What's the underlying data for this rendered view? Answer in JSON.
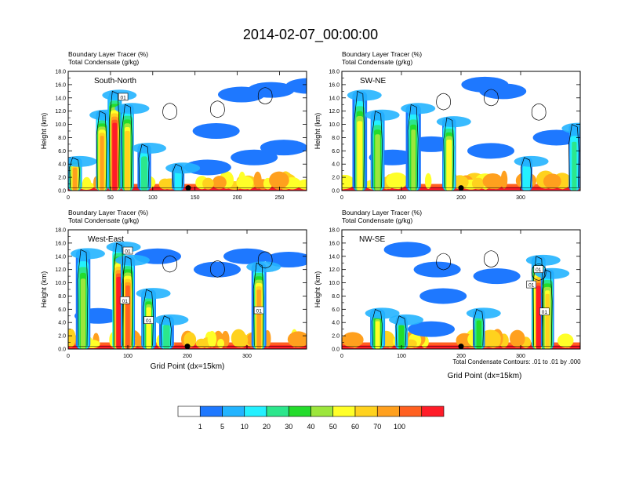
{
  "title": "2014-02-07_00:00:00",
  "colors": {
    "levels": [
      "#ffffff",
      "#1e78ff",
      "#23b4ff",
      "#24f0ff",
      "#2ce68c",
      "#24dc2c",
      "#9ce63c",
      "#ffff28",
      "#ffd21e",
      "#ffa01e",
      "#ff6020",
      "#ff1c28"
    ],
    "contour": "#000000",
    "background": "#ffffff"
  },
  "colorbar": {
    "labels": [
      "1",
      "5",
      "10",
      "20",
      "30",
      "40",
      "50",
      "60",
      "70",
      "100"
    ]
  },
  "footnote": "Total Condensate Contours: .01 to .01 by .000",
  "chart_data": [
    {
      "type": "heatmap",
      "name": "South-North",
      "line1": "Boundary Layer Tracer    (%)",
      "line2": "Total Condensate    (g/kg)",
      "ylabel": "Height (km)",
      "xlabel": "",
      "xlim": [
        0,
        282
      ],
      "ylim": [
        0,
        18
      ],
      "xticks": [
        "0",
        "50",
        "100",
        "150",
        "200",
        "250"
      ],
      "yticks": [
        "0.0",
        "2.0",
        "4.0",
        "6.0",
        "8.0",
        "10.0",
        "12.0",
        "14.0",
        "16.0",
        "18.0"
      ],
      "contour_labels": [
        {
          "text": "01",
          "x": 65,
          "y": 14.1
        }
      ],
      "marker_x": 142,
      "columns": [
        {
          "x": 8,
          "top": 5,
          "peak": 9
        },
        {
          "x": 40,
          "top": 12,
          "peak": 9
        },
        {
          "x": 55,
          "top": 15,
          "peak": 11
        },
        {
          "x": 70,
          "top": 13,
          "peak": 8
        },
        {
          "x": 90,
          "top": 7,
          "peak": 4
        },
        {
          "x": 130,
          "top": 4,
          "peak": 3
        }
      ],
      "patches": [
        {
          "x": 175,
          "y": 9,
          "v": 4
        },
        {
          "x": 165,
          "y": 3.5,
          "v": 4
        },
        {
          "x": 220,
          "y": 5,
          "v": 4
        },
        {
          "x": 255,
          "y": 6.5,
          "v": 5
        },
        {
          "x": 240,
          "y": 15.2,
          "v": 1
        },
        {
          "x": 205,
          "y": 14.5,
          "v": 1
        },
        {
          "x": 285,
          "y": 15.8,
          "v": 1
        }
      ]
    },
    {
      "type": "heatmap",
      "name": "SW-NE",
      "line1": "Boundary Layer Tracer    (%)",
      "line2": "Total Condensate    (g/kg)",
      "ylabel": "Height (km)",
      "xlabel": "",
      "xlim": [
        0,
        400
      ],
      "ylim": [
        0,
        18
      ],
      "xticks": [
        "0",
        "100",
        "200",
        "300"
      ],
      "yticks": [
        "0.0",
        "2.0",
        "4.0",
        "6.0",
        "8.0",
        "10.0",
        "12.0",
        "14.0",
        "16.0",
        "18.0"
      ],
      "contour_labels": [],
      "marker_x": 200,
      "columns": [
        {
          "x": 30,
          "top": 15,
          "peak": 7
        },
        {
          "x": 60,
          "top": 12,
          "peak": 6
        },
        {
          "x": 120,
          "top": 13,
          "peak": 6
        },
        {
          "x": 180,
          "top": 11,
          "peak": 7
        },
        {
          "x": 310,
          "top": 5,
          "peak": 3
        },
        {
          "x": 390,
          "top": 10,
          "peak": 4
        }
      ],
      "patches": [
        {
          "x": 85,
          "y": 5,
          "v": 4
        },
        {
          "x": 150,
          "y": 7,
          "v": 4
        },
        {
          "x": 250,
          "y": 6,
          "v": 3
        },
        {
          "x": 270,
          "y": 15,
          "v": 1
        },
        {
          "x": 240,
          "y": 16,
          "v": 1
        },
        {
          "x": 360,
          "y": 8,
          "v": 3
        }
      ]
    },
    {
      "type": "heatmap",
      "name": "West-East",
      "line1": "Boundary Layer Tracer    (%)",
      "line2": "Total Condensate    (g/kg)",
      "ylabel": "Height (km)",
      "xlabel": "Grid Point (dx=15km)",
      "xlim": [
        0,
        400
      ],
      "ylim": [
        0,
        18
      ],
      "xticks": [
        "0",
        "100",
        "200",
        "300"
      ],
      "yticks": [
        "0.0",
        "2.0",
        "4.0",
        "6.0",
        "8.0",
        "10.0",
        "12.0",
        "14.0",
        "16.0",
        "18.0"
      ],
      "contour_labels": [
        {
          "text": "01",
          "x": 100,
          "y": 14.8
        },
        {
          "x": 95,
          "y": 7.3,
          "text": "01"
        },
        {
          "x": 135,
          "y": 4.3,
          "text": "01"
        },
        {
          "x": 320,
          "y": 5.8,
          "text": "01"
        }
      ],
      "marker_x": 200,
      "columns": [
        {
          "x": 25,
          "top": 15,
          "peak": 6
        },
        {
          "x": 85,
          "top": 16,
          "peak": 11
        },
        {
          "x": 100,
          "top": 14,
          "peak": 10
        },
        {
          "x": 135,
          "top": 9,
          "peak": 7
        },
        {
          "x": 165,
          "top": 5,
          "peak": 4
        },
        {
          "x": 320,
          "top": 13,
          "peak": 9
        }
      ],
      "patches": [
        {
          "x": 50,
          "y": 5,
          "v": 4
        },
        {
          "x": 150,
          "y": 14,
          "v": 3
        },
        {
          "x": 300,
          "y": 14,
          "v": 3
        },
        {
          "x": 370,
          "y": 13.5,
          "v": 4
        },
        {
          "x": 250,
          "y": 12,
          "v": 2
        }
      ]
    },
    {
      "type": "heatmap",
      "name": "NW-SE",
      "line1": "Boundary Layer Tracer    (%)",
      "line2": "Total Condensate    (g/kg)",
      "ylabel": "Height (km)",
      "xlabel": "Grid Point (dx=15km)",
      "xlim": [
        0,
        400
      ],
      "ylim": [
        0,
        18
      ],
      "xticks": [
        "0",
        "100",
        "200",
        "300"
      ],
      "yticks": [
        "0.0",
        "2.0",
        "4.0",
        "6.0",
        "8.0",
        "10.0",
        "12.0",
        "14.0",
        "16.0",
        "18.0"
      ],
      "contour_labels": [
        {
          "text": "01",
          "x": 330,
          "y": 12.0
        },
        {
          "text": "01",
          "x": 318,
          "y": 9.7
        },
        {
          "text": "01",
          "x": 340,
          "y": 5.6
        }
      ],
      "marker_x": 200,
      "columns": [
        {
          "x": 60,
          "top": 6,
          "peak": 7
        },
        {
          "x": 100,
          "top": 5,
          "peak": 5
        },
        {
          "x": 230,
          "top": 6,
          "peak": 5
        },
        {
          "x": 330,
          "top": 14,
          "peak": 11
        },
        {
          "x": 345,
          "top": 12,
          "peak": 8
        }
      ],
      "patches": [
        {
          "x": 110,
          "y": 15,
          "v": 4
        },
        {
          "x": 160,
          "y": 12,
          "v": 3
        },
        {
          "x": 170,
          "y": 8,
          "v": 2
        },
        {
          "x": 260,
          "y": 11,
          "v": 2
        },
        {
          "x": 150,
          "y": 3,
          "v": 4
        }
      ]
    }
  ]
}
